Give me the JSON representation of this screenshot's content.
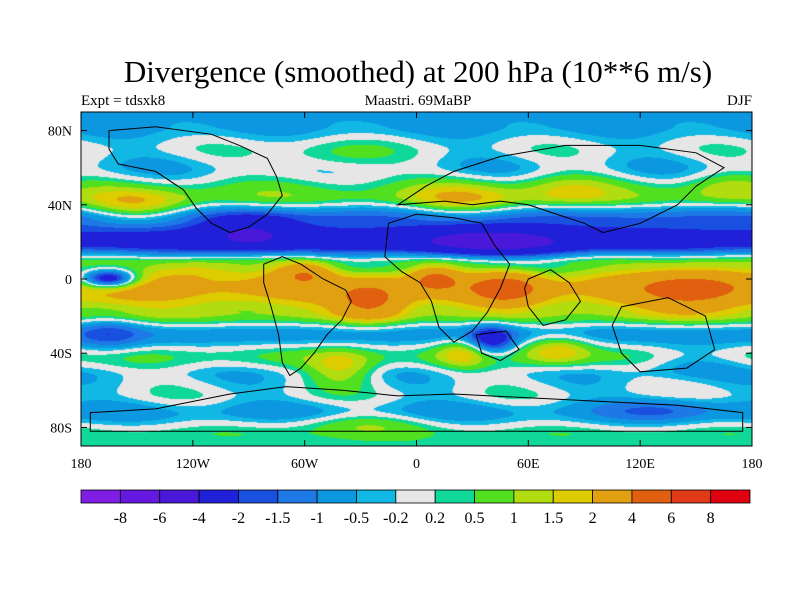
{
  "chart_data": {
    "type": "heatmap",
    "title": "Divergence (smoothed) at 200 hPa (10**6 m/s)",
    "subtitle_left": "Expt = tdsxk8",
    "subtitle_center": "Maastri.  69MaBP",
    "subtitle_right": "DJF",
    "x_ticks": [
      {
        "value": -180,
        "label": "180"
      },
      {
        "value": -120,
        "label": "120W"
      },
      {
        "value": -60,
        "label": "60W"
      },
      {
        "value": 0,
        "label": "0"
      },
      {
        "value": 60,
        "label": "60E"
      },
      {
        "value": 120,
        "label": "120E"
      },
      {
        "value": 180,
        "label": "180"
      }
    ],
    "y_ticks": [
      {
        "value": 80,
        "label": "80N"
      },
      {
        "value": 40,
        "label": "40N"
      },
      {
        "value": 0,
        "label": "0"
      },
      {
        "value": -40,
        "label": "40S"
      },
      {
        "value": -80,
        "label": "80S"
      }
    ],
    "xlim": [
      -180,
      180
    ],
    "ylim": [
      -90,
      90
    ],
    "colorbar": {
      "labels": [
        "-8",
        "-6",
        "-4",
        "-2",
        "-1.5",
        "-1",
        "-0.5",
        "-0.2",
        "0.2",
        "0.5",
        "1",
        "1.5",
        "2",
        "4",
        "6",
        "8"
      ],
      "colors": [
        "#7f1de5",
        "#6418e0",
        "#4a18d8",
        "#2020d8",
        "#1a50e0",
        "#1e78e6",
        "#0c98e0",
        "#12b8e4",
        "#e6e6e6",
        "#10d898",
        "#50e020",
        "#b0dc10",
        "#dccc00",
        "#e0a010",
        "#e06010",
        "#e03a18",
        "#e00010"
      ]
    },
    "field_bands": [
      {
        "lat": 82,
        "value": -0.6
      },
      {
        "lat": 70,
        "value": 0.0
      },
      {
        "lat": 60,
        "value": -0.4
      },
      {
        "lat": 45,
        "value": 0.8
      },
      {
        "lat": 32,
        "value": -1.6
      },
      {
        "lat": 20,
        "value": -2.6
      },
      {
        "lat": 8,
        "value": 0.6
      },
      {
        "lat": -5,
        "value": 2.4
      },
      {
        "lat": -18,
        "value": 1.2
      },
      {
        "lat": -30,
        "value": -0.8
      },
      {
        "lat": -42,
        "value": 0.5
      },
      {
        "lat": -52,
        "value": -0.3
      },
      {
        "lat": -62,
        "value": 0.0
      },
      {
        "lat": -72,
        "value": -0.7
      },
      {
        "lat": -84,
        "value": 0.4
      }
    ],
    "field_blobs": [
      {
        "lon": -150,
        "lat": 38,
        "rlon": 28,
        "rlat": 9,
        "value": 1.8
      },
      {
        "lon": -45,
        "lat": 65,
        "rlon": 30,
        "rlat": 10,
        "value": 0.8
      },
      {
        "lon": 25,
        "lat": 42,
        "rlon": 28,
        "rlat": 10,
        "value": 1.4
      },
      {
        "lon": 80,
        "lat": 48,
        "rlon": 25,
        "rlat": 9,
        "value": 1.0
      },
      {
        "lon": 165,
        "lat": 50,
        "rlon": 22,
        "rlat": 8,
        "value": 0.8
      },
      {
        "lon": 40,
        "lat": 20,
        "rlon": 45,
        "rlat": 8,
        "value": -2.6
      },
      {
        "lon": -90,
        "lat": 25,
        "rlon": 25,
        "rlat": 9,
        "value": -2.2
      },
      {
        "lon": -165,
        "lat": 0,
        "rlon": 15,
        "rlat": 5,
        "value": -4.5
      },
      {
        "lon": -120,
        "lat": 5,
        "rlon": 25,
        "rlat": 6,
        "value": 1.2
      },
      {
        "lon": -60,
        "lat": 3,
        "rlon": 15,
        "rlat": 6,
        "value": 2.6
      },
      {
        "lon": -25,
        "lat": -12,
        "rlon": 18,
        "rlat": 10,
        "value": 3.2
      },
      {
        "lon": 10,
        "lat": 0,
        "rlon": 12,
        "rlat": 6,
        "value": 3.0
      },
      {
        "lon": 48,
        "lat": -5,
        "rlon": 18,
        "rlat": 8,
        "value": 3.5
      },
      {
        "lon": 150,
        "lat": -5,
        "rlon": 30,
        "rlat": 12,
        "value": 3.0
      },
      {
        "lon": -40,
        "lat": -48,
        "rlon": 18,
        "rlat": 10,
        "value": 1.5
      },
      {
        "lon": 25,
        "lat": -40,
        "rlon": 14,
        "rlat": 8,
        "value": 1.4
      },
      {
        "lon": 75,
        "lat": -38,
        "rlon": 18,
        "rlat": 8,
        "value": 1.8
      },
      {
        "lon": 145,
        "lat": -45,
        "rlon": 28,
        "rlat": 8,
        "value": -0.8
      },
      {
        "lon": 40,
        "lat": -33,
        "rlon": 12,
        "rlat": 8,
        "value": -2.3
      },
      {
        "lon": -165,
        "lat": -30,
        "rlon": 18,
        "rlat": 10,
        "value": -1.2
      },
      {
        "lon": -30,
        "lat": -78,
        "rlon": 35,
        "rlat": 6,
        "value": 0.9
      },
      {
        "lon": 135,
        "lat": -70,
        "rlon": 30,
        "rlat": 7,
        "value": -1.0
      }
    ]
  }
}
